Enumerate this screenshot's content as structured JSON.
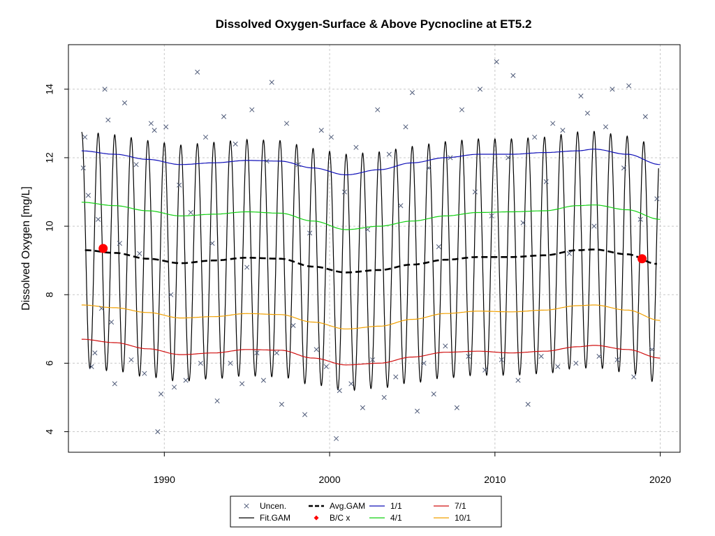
{
  "chart_data": {
    "type": "line",
    "title": "Dissolved Oxygen-Surface & Above Pycnocline at ET5.2",
    "xlabel": "",
    "ylabel": "Dissolved Oxygen [mg/L]",
    "xlim": [
      1984.2,
      2021.2
    ],
    "ylim": [
      3.4,
      15.3
    ],
    "grid": true,
    "x_ticks": [
      1990,
      2000,
      2010,
      2020
    ],
    "y_ticks": [
      4,
      6,
      8,
      10,
      12,
      14
    ],
    "x_tick_labels": [
      "1990",
      "2000",
      "2010",
      "2020"
    ],
    "y_tick_labels": [
      "4",
      "6",
      "8",
      "10",
      "12",
      "14"
    ],
    "colors": {
      "uncen": "#4e5a78",
      "fit": "#000000",
      "avg": "#000000",
      "bc": "#ff0000",
      "s1": "#1010b8",
      "s4": "#11d011",
      "s10": "#f0a000",
      "s7": "#d01010"
    },
    "series": [
      {
        "name": "1/1",
        "key": "s1",
        "x": [
          1985,
          1987,
          1989,
          1991,
          1993,
          1995,
          1997,
          1999,
          2001,
          2003,
          2005,
          2007,
          2009,
          2011,
          2013,
          2015,
          2016,
          2018,
          2020
        ],
        "y": [
          12.2,
          12.1,
          11.95,
          11.8,
          11.85,
          11.92,
          11.9,
          11.7,
          11.5,
          11.65,
          11.85,
          12.0,
          12.1,
          12.1,
          12.15,
          12.2,
          12.25,
          12.1,
          11.8
        ]
      },
      {
        "name": "4/1",
        "key": "s4",
        "x": [
          1985,
          1987,
          1989,
          1991,
          1993,
          1995,
          1997,
          1999,
          2001,
          2003,
          2005,
          2007,
          2009,
          2011,
          2013,
          2015,
          2016,
          2018,
          2020
        ],
        "y": [
          10.7,
          10.6,
          10.45,
          10.3,
          10.35,
          10.42,
          10.38,
          10.15,
          9.9,
          10.0,
          10.15,
          10.3,
          10.4,
          10.42,
          10.45,
          10.6,
          10.62,
          10.48,
          10.2
        ]
      },
      {
        "name": "10/1",
        "key": "s10",
        "x": [
          1985,
          1987,
          1989,
          1991,
          1993,
          1995,
          1997,
          1999,
          2001,
          2003,
          2005,
          2007,
          2009,
          2011,
          2013,
          2015,
          2016,
          2018,
          2020
        ],
        "y": [
          7.7,
          7.62,
          7.48,
          7.32,
          7.36,
          7.45,
          7.42,
          7.2,
          7.0,
          7.08,
          7.28,
          7.45,
          7.52,
          7.5,
          7.55,
          7.68,
          7.7,
          7.55,
          7.25
        ]
      },
      {
        "name": "7/1",
        "key": "s7",
        "x": [
          1985,
          1987,
          1989,
          1991,
          1993,
          1995,
          1997,
          1999,
          2001,
          2003,
          2005,
          2007,
          2009,
          2011,
          2013,
          2015,
          2016,
          2018,
          2020
        ],
        "y": [
          6.7,
          6.6,
          6.42,
          6.25,
          6.3,
          6.4,
          6.38,
          6.15,
          5.95,
          6.0,
          6.18,
          6.32,
          6.35,
          6.3,
          6.35,
          6.48,
          6.52,
          6.4,
          6.15
        ]
      },
      {
        "name": "Avg.GAM",
        "key": "avg",
        "x": [
          1985.2,
          1987,
          1989,
          1991,
          1993,
          1995,
          1997,
          1999,
          2001,
          2003,
          2005,
          2007,
          2009,
          2011,
          2013,
          2015,
          2016,
          2018,
          2019.8
        ],
        "y": [
          9.3,
          9.22,
          9.05,
          8.92,
          9.0,
          9.08,
          9.05,
          8.82,
          8.65,
          8.72,
          8.88,
          9.02,
          9.1,
          9.1,
          9.15,
          9.3,
          9.32,
          9.18,
          8.9
        ]
      },
      {
        "name": "Fit.GAM",
        "key": "fit",
        "amplitude": 3.45,
        "period_years": 1,
        "x_start": 1985.0,
        "x_end": 2019.9
      }
    ],
    "bc_points": {
      "name": "B/C x",
      "x": [
        1986.3,
        2018.9
      ],
      "y": [
        9.35,
        9.05
      ]
    },
    "uncen_points": {
      "name": "Uncen.",
      "x": [
        1985.1,
        1985.2,
        1985.4,
        1985.6,
        1985.8,
        1986.0,
        1986.2,
        1986.4,
        1986.6,
        1986.8,
        1987.0,
        1987.3,
        1987.6,
        1988.0,
        1988.3,
        1988.5,
        1988.8,
        1989.2,
        1989.4,
        1989.6,
        1989.8,
        1990.1,
        1990.4,
        1990.6,
        1990.9,
        1991.3,
        1991.6,
        1992.0,
        1992.2,
        1992.5,
        1992.9,
        1993.2,
        1993.6,
        1994.0,
        1994.3,
        1994.7,
        1995.0,
        1995.3,
        1995.6,
        1996.0,
        1996.2,
        1996.5,
        1996.8,
        1997.1,
        1997.4,
        1997.8,
        1998.1,
        1998.5,
        1998.8,
        1999.2,
        1999.5,
        1999.8,
        2000.1,
        2000.4,
        2000.6,
        2000.9,
        2001.3,
        2001.6,
        2002.0,
        2002.3,
        2002.6,
        2002.9,
        2003.3,
        2003.6,
        2004.0,
        2004.3,
        2004.6,
        2005.0,
        2005.3,
        2005.7,
        2006.0,
        2006.3,
        2006.6,
        2007.0,
        2007.3,
        2007.7,
        2008.0,
        2008.4,
        2008.8,
        2009.1,
        2009.4,
        2009.8,
        2010.1,
        2010.4,
        2010.8,
        2011.1,
        2011.4,
        2011.7,
        2012.0,
        2012.4,
        2012.8,
        2013.1,
        2013.5,
        2013.8,
        2014.1,
        2014.5,
        2014.9,
        2015.2,
        2015.6,
        2016.0,
        2016.3,
        2016.7,
        2017.1,
        2017.4,
        2017.8,
        2018.1,
        2018.4,
        2018.8,
        2019.1,
        2019.5,
        2019.8
      ],
      "y": [
        11.7,
        12.6,
        10.9,
        5.9,
        6.3,
        10.2,
        7.6,
        14.0,
        13.1,
        7.2,
        5.4,
        9.5,
        13.6,
        6.1,
        11.8,
        9.2,
        5.7,
        13.0,
        12.8,
        4.0,
        5.1,
        12.9,
        8.0,
        5.3,
        11.2,
        5.5,
        10.4,
        14.5,
        6.0,
        12.6,
        9.5,
        4.9,
        13.2,
        6.0,
        12.4,
        5.4,
        8.8,
        13.4,
        6.3,
        5.5,
        11.9,
        14.2,
        6.3,
        4.8,
        13.0,
        7.1,
        11.8,
        4.5,
        9.8,
        6.4,
        12.8,
        5.9,
        12.6,
        3.8,
        5.2,
        11.0,
        5.4,
        12.3,
        4.7,
        9.9,
        6.1,
        13.4,
        5.0,
        12.1,
        5.6,
        10.6,
        12.9,
        13.9,
        4.6,
        6.0,
        11.7,
        5.1,
        9.4,
        6.5,
        12.0,
        4.7,
        13.4,
        6.2,
        11.0,
        14.0,
        5.8,
        10.3,
        14.8,
        6.1,
        12.0,
        14.4,
        5.5,
        10.1,
        4.8,
        12.6,
        6.2,
        11.3,
        13.0,
        5.9,
        12.8,
        9.2,
        6.0,
        13.8,
        13.3,
        10.0,
        6.2,
        12.9,
        14.0,
        6.1,
        11.7,
        14.1,
        5.6,
        10.2,
        13.2,
        6.4,
        10.8
      ]
    },
    "legend": {
      "position": "bottom",
      "entries": [
        {
          "label": "Uncen.",
          "key": "uncen",
          "symbol": "x"
        },
        {
          "label": "Fit.GAM",
          "key": "fit",
          "symbol": "line"
        },
        {
          "label": "Avg.GAM",
          "key": "avg",
          "symbol": "dashed"
        },
        {
          "label": "B/C x",
          "key": "bc",
          "symbol": "diamond"
        },
        {
          "label": "1/1",
          "key": "s1",
          "symbol": "line"
        },
        {
          "label": "4/1",
          "key": "s4",
          "symbol": "line"
        },
        {
          "label": "7/1",
          "key": "s7",
          "symbol": "line"
        },
        {
          "label": "10/1",
          "key": "s10",
          "symbol": "line"
        }
      ]
    }
  }
}
